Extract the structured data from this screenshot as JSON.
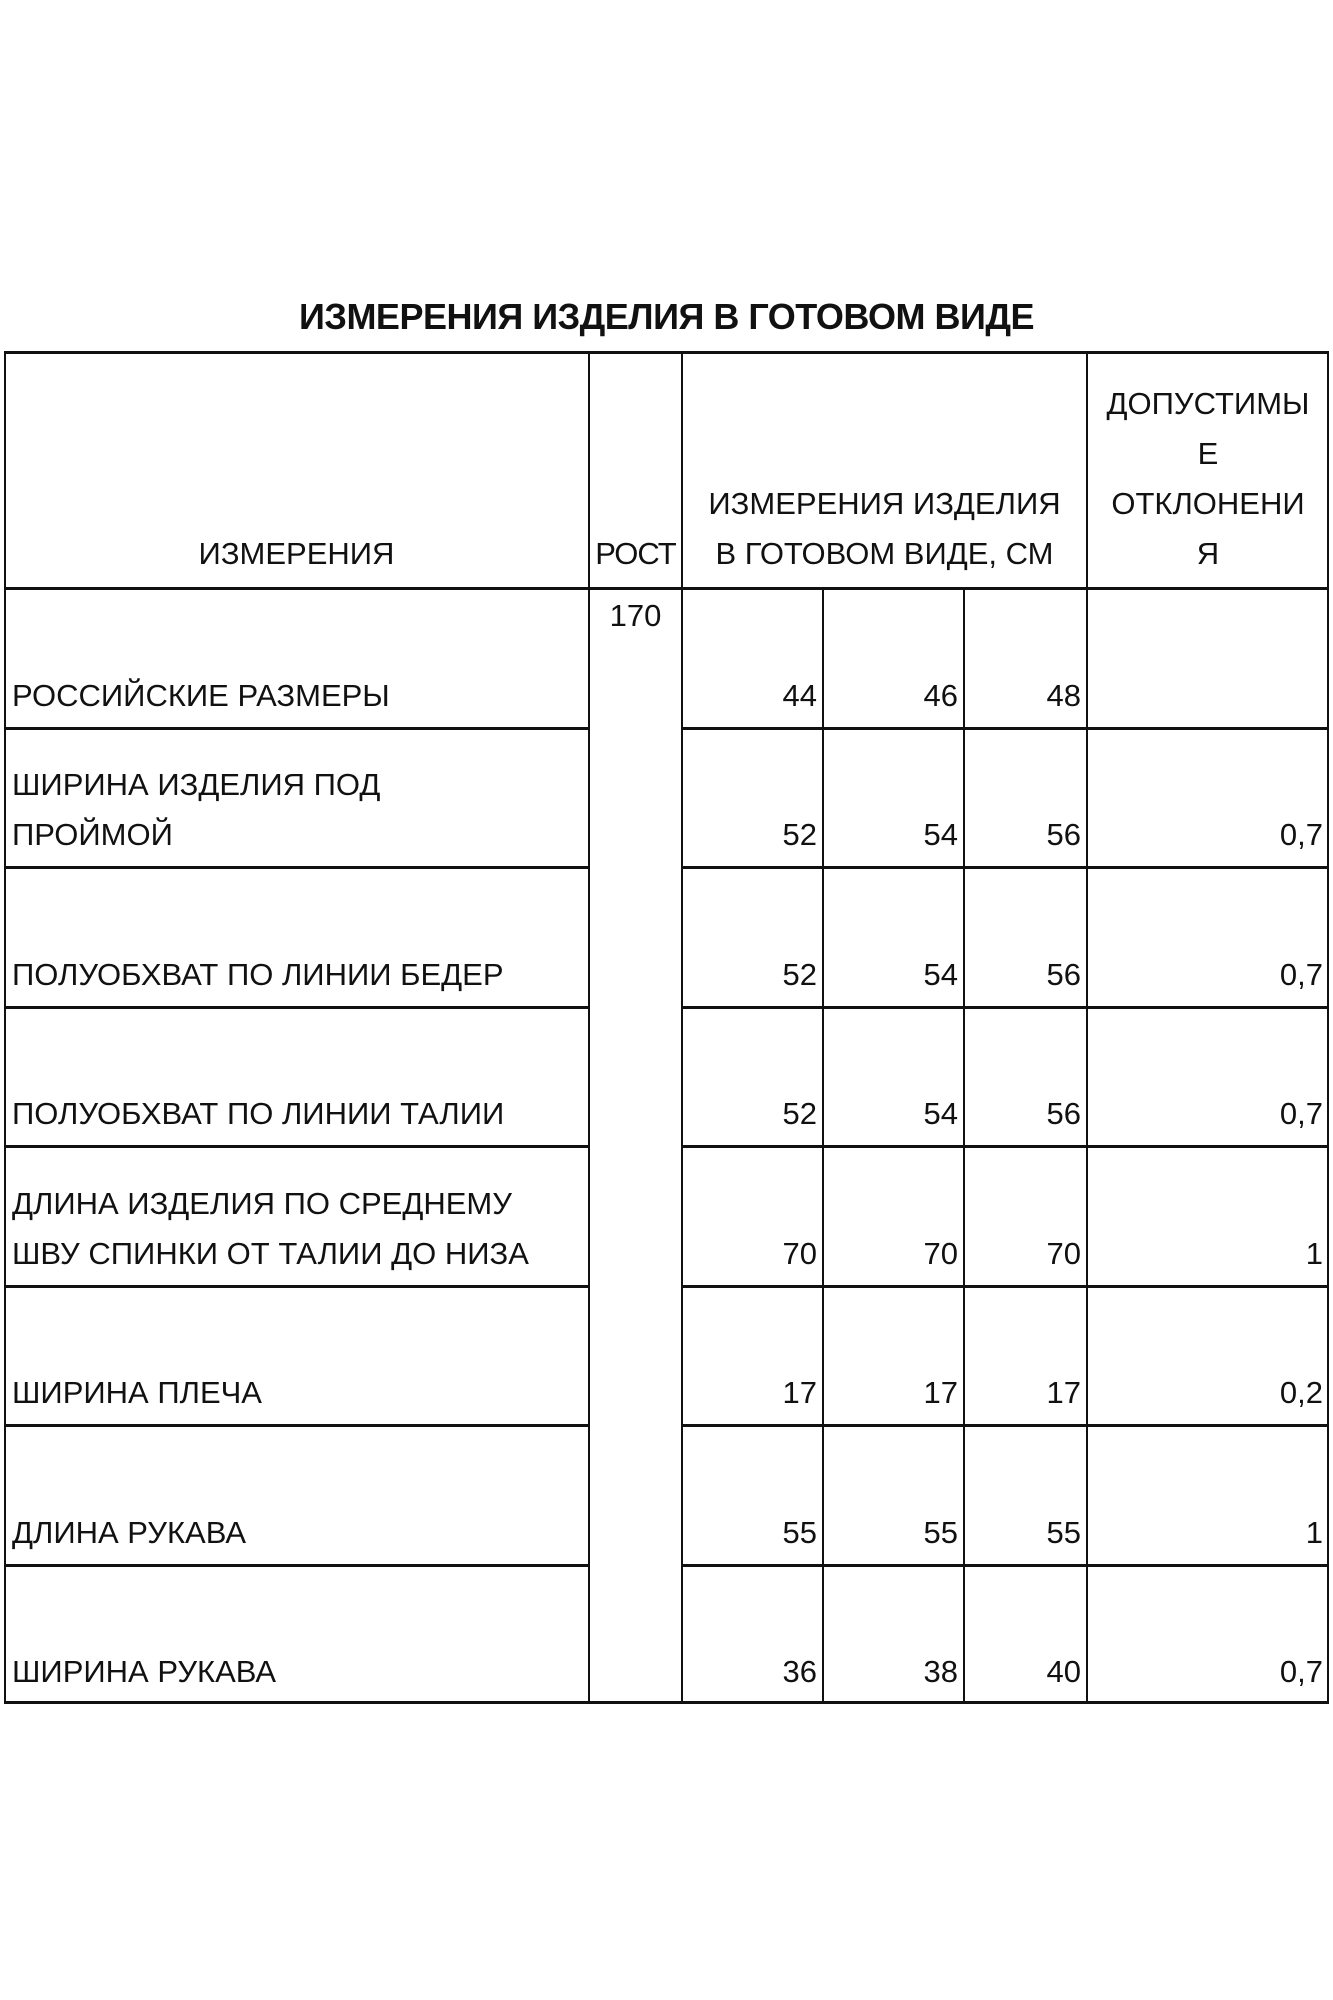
{
  "title": "ИЗМЕРЕНИЯ ИЗДЕЛИЯ В ГОТОВОМ ВИДЕ",
  "header": {
    "measure": "ИЗМЕРЕНИЯ",
    "height": "РОСТ",
    "values_lines": [
      "ИЗМЕРЕНИЯ ИЗДЕЛИЯ",
      "В ГОТОВОМ ВИДЕ, СМ"
    ],
    "tolerance_lines": [
      "ДОПУСТИМЫ",
      "Е",
      "ОТКЛОНЕНИ",
      "Я"
    ]
  },
  "height_value": "170",
  "rows": [
    {
      "label": [
        "РОССИЙСКИЕ РАЗМЕРЫ"
      ],
      "values": [
        "44",
        "46",
        "48"
      ],
      "tolerance": ""
    },
    {
      "label": [
        "ШИРИНА ИЗДЕЛИЯ ПОД",
        "ПРОЙМОЙ"
      ],
      "values": [
        "52",
        "54",
        "56"
      ],
      "tolerance": "0,7"
    },
    {
      "label": [
        "ПОЛУОБХВАТ ПО ЛИНИИ БЕДЕР"
      ],
      "values": [
        "52",
        "54",
        "56"
      ],
      "tolerance": "0,7"
    },
    {
      "label": [
        "ПОЛУОБХВАТ ПО ЛИНИИ ТАЛИИ"
      ],
      "values": [
        "52",
        "54",
        "56"
      ],
      "tolerance": "0,7"
    },
    {
      "label": [
        "ДЛИНА ИЗДЕЛИЯ ПО СРЕДНЕМУ",
        "ШВУ СПИНКИ ОТ ТАЛИИ ДО НИЗА"
      ],
      "values": [
        "70",
        "70",
        "70"
      ],
      "tolerance": "1"
    },
    {
      "label": [
        "ШИРИНА ПЛЕЧА"
      ],
      "values": [
        "17",
        "17",
        "17"
      ],
      "tolerance": "0,2"
    },
    {
      "label": [
        "ДЛИНА РУКАВА"
      ],
      "values": [
        "55",
        "55",
        "55"
      ],
      "tolerance": "1"
    },
    {
      "label": [
        "ШИРИНА РУКАВА"
      ],
      "values": [
        "36",
        "38",
        "40"
      ],
      "tolerance": "0,7"
    }
  ]
}
